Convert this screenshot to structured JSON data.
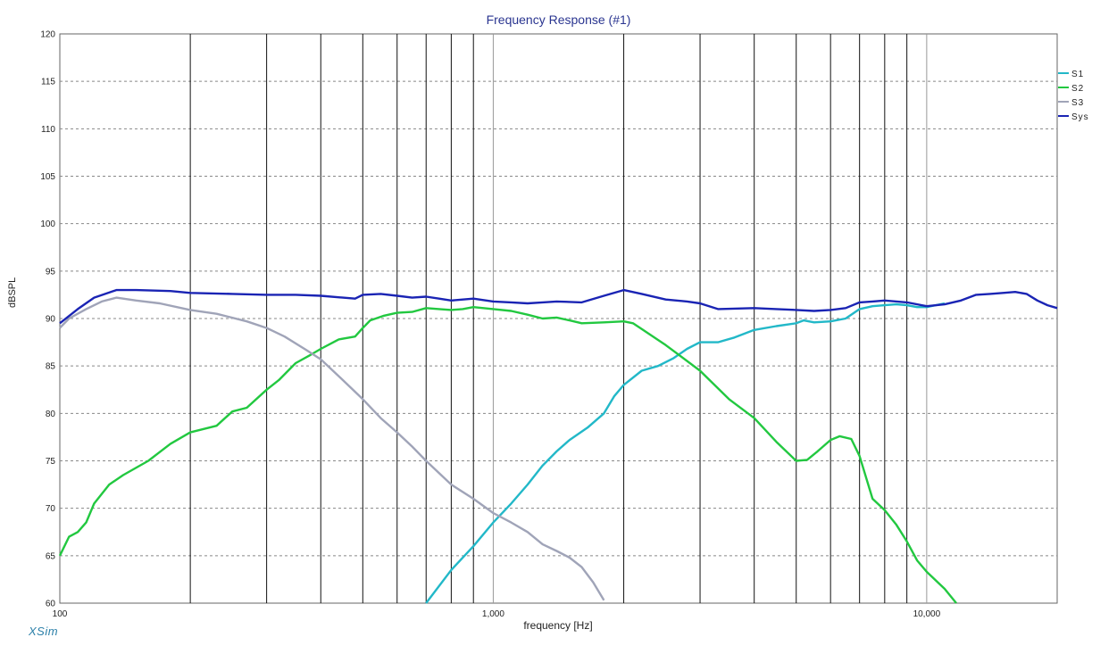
{
  "chart_data": {
    "type": "line",
    "title": "Frequency Response (#1)",
    "xlabel": "frequency [Hz]",
    "ylabel": "dBSPL",
    "x_scale": "log",
    "xlim": [
      100,
      20000
    ],
    "ylim": [
      60,
      120
    ],
    "yticks": [
      60,
      65,
      70,
      75,
      80,
      85,
      90,
      95,
      100,
      105,
      110,
      115,
      120
    ],
    "xtick_labels": [
      {
        "value": 100,
        "label": "100"
      },
      {
        "value": 1000,
        "label": "1,000"
      },
      {
        "value": 10000,
        "label": "10,000"
      }
    ],
    "grid": true,
    "legend": "top-right",
    "series": [
      {
        "name": "S1",
        "color": "#22b8c8",
        "points": [
          [
            700,
            60
          ],
          [
            800,
            63.5
          ],
          [
            900,
            66
          ],
          [
            1000,
            68.5
          ],
          [
            1100,
            70.5
          ],
          [
            1200,
            72.5
          ],
          [
            1300,
            74.5
          ],
          [
            1400,
            76
          ],
          [
            1500,
            77.2
          ],
          [
            1650,
            78.5
          ],
          [
            1800,
            80
          ],
          [
            1900,
            81.8
          ],
          [
            2000,
            83
          ],
          [
            2200,
            84.5
          ],
          [
            2400,
            85
          ],
          [
            2600,
            85.8
          ],
          [
            2800,
            86.8
          ],
          [
            3000,
            87.5
          ],
          [
            3300,
            87.5
          ],
          [
            3600,
            88
          ],
          [
            4000,
            88.8
          ],
          [
            4500,
            89.2
          ],
          [
            5000,
            89.5
          ],
          [
            5200,
            89.8
          ],
          [
            5500,
            89.6
          ],
          [
            6000,
            89.7
          ],
          [
            6500,
            90
          ],
          [
            7000,
            91
          ],
          [
            7500,
            91.3
          ],
          [
            8000,
            91.4
          ],
          [
            8500,
            91.5
          ],
          [
            9000,
            91.4
          ],
          [
            9500,
            91.2
          ],
          [
            10000,
            91.2
          ],
          [
            11000,
            91.6
          ]
        ]
      },
      {
        "name": "S2",
        "color": "#22c840",
        "points": [
          [
            100,
            65
          ],
          [
            105,
            67
          ],
          [
            110,
            67.5
          ],
          [
            115,
            68.5
          ],
          [
            120,
            70.5
          ],
          [
            130,
            72.5
          ],
          [
            140,
            73.5
          ],
          [
            160,
            75
          ],
          [
            180,
            76.8
          ],
          [
            200,
            78
          ],
          [
            230,
            78.7
          ],
          [
            250,
            80.2
          ],
          [
            270,
            80.6
          ],
          [
            300,
            82.5
          ],
          [
            320,
            83.5
          ],
          [
            350,
            85.3
          ],
          [
            380,
            86.2
          ],
          [
            400,
            86.8
          ],
          [
            440,
            87.8
          ],
          [
            480,
            88.1
          ],
          [
            500,
            89
          ],
          [
            520,
            89.8
          ],
          [
            560,
            90.3
          ],
          [
            600,
            90.6
          ],
          [
            650,
            90.7
          ],
          [
            700,
            91.1
          ],
          [
            750,
            91
          ],
          [
            800,
            90.9
          ],
          [
            850,
            91
          ],
          [
            900,
            91.2
          ],
          [
            1000,
            91
          ],
          [
            1100,
            90.8
          ],
          [
            1200,
            90.4
          ],
          [
            1300,
            90
          ],
          [
            1400,
            90.1
          ],
          [
            1500,
            89.8
          ],
          [
            1600,
            89.5
          ],
          [
            1800,
            89.6
          ],
          [
            2000,
            89.7
          ],
          [
            2100,
            89.5
          ],
          [
            2200,
            88.9
          ],
          [
            2500,
            87.2
          ],
          [
            3000,
            84.5
          ],
          [
            3500,
            81.5
          ],
          [
            4000,
            79.5
          ],
          [
            4500,
            77
          ],
          [
            5000,
            75
          ],
          [
            5300,
            75.1
          ],
          [
            5600,
            76
          ],
          [
            6000,
            77.2
          ],
          [
            6300,
            77.6
          ],
          [
            6700,
            77.3
          ],
          [
            7000,
            75.5
          ],
          [
            7500,
            71
          ],
          [
            8000,
            69.8
          ],
          [
            8500,
            68.3
          ],
          [
            9000,
            66.5
          ],
          [
            9500,
            64.5
          ],
          [
            10000,
            63.3
          ],
          [
            11000,
            61.5
          ],
          [
            11700,
            60
          ]
        ]
      },
      {
        "name": "S3",
        "color": "#a0a4b8",
        "points": [
          [
            100,
            89
          ],
          [
            105,
            90
          ],
          [
            115,
            91
          ],
          [
            125,
            91.8
          ],
          [
            135,
            92.2
          ],
          [
            150,
            91.9
          ],
          [
            170,
            91.6
          ],
          [
            200,
            90.9
          ],
          [
            230,
            90.5
          ],
          [
            270,
            89.7
          ],
          [
            300,
            89
          ],
          [
            330,
            88.1
          ],
          [
            370,
            86.7
          ],
          [
            400,
            85.7
          ],
          [
            450,
            83.5
          ],
          [
            500,
            81.5
          ],
          [
            550,
            79.5
          ],
          [
            600,
            78
          ],
          [
            650,
            76.5
          ],
          [
            700,
            75
          ],
          [
            800,
            72.5
          ],
          [
            900,
            71
          ],
          [
            1000,
            69.5
          ],
          [
            1100,
            68.5
          ],
          [
            1200,
            67.5
          ],
          [
            1300,
            66.2
          ],
          [
            1400,
            65.5
          ],
          [
            1500,
            64.8
          ],
          [
            1600,
            63.8
          ],
          [
            1700,
            62.2
          ],
          [
            1800,
            60.3
          ]
        ]
      },
      {
        "name": "Sys",
        "color": "#1a24b4",
        "points": [
          [
            100,
            89.5
          ],
          [
            110,
            91
          ],
          [
            120,
            92.2
          ],
          [
            135,
            93
          ],
          [
            150,
            93
          ],
          [
            180,
            92.9
          ],
          [
            200,
            92.7
          ],
          [
            250,
            92.6
          ],
          [
            300,
            92.5
          ],
          [
            350,
            92.5
          ],
          [
            400,
            92.4
          ],
          [
            450,
            92.2
          ],
          [
            480,
            92.1
          ],
          [
            500,
            92.5
          ],
          [
            550,
            92.6
          ],
          [
            600,
            92.4
          ],
          [
            650,
            92.2
          ],
          [
            700,
            92.3
          ],
          [
            750,
            92.1
          ],
          [
            800,
            91.9
          ],
          [
            900,
            92.1
          ],
          [
            1000,
            91.8
          ],
          [
            1100,
            91.7
          ],
          [
            1200,
            91.6
          ],
          [
            1300,
            91.7
          ],
          [
            1400,
            91.8
          ],
          [
            1600,
            91.7
          ],
          [
            1800,
            92.4
          ],
          [
            2000,
            93
          ],
          [
            2200,
            92.6
          ],
          [
            2500,
            92
          ],
          [
            2800,
            91.8
          ],
          [
            3000,
            91.6
          ],
          [
            3300,
            91
          ],
          [
            4000,
            91.1
          ],
          [
            4500,
            91
          ],
          [
            5000,
            90.9
          ],
          [
            5500,
            90.8
          ],
          [
            6000,
            90.9
          ],
          [
            6500,
            91.1
          ],
          [
            7000,
            91.7
          ],
          [
            7500,
            91.8
          ],
          [
            8000,
            91.9
          ],
          [
            9000,
            91.7
          ],
          [
            10000,
            91.3
          ],
          [
            11000,
            91.5
          ],
          [
            12000,
            91.9
          ],
          [
            13000,
            92.5
          ],
          [
            14000,
            92.6
          ],
          [
            15000,
            92.7
          ],
          [
            16000,
            92.8
          ],
          [
            17000,
            92.6
          ],
          [
            18000,
            91.9
          ],
          [
            19000,
            91.4
          ],
          [
            20000,
            91.1
          ]
        ]
      }
    ]
  },
  "brand": "XSim"
}
